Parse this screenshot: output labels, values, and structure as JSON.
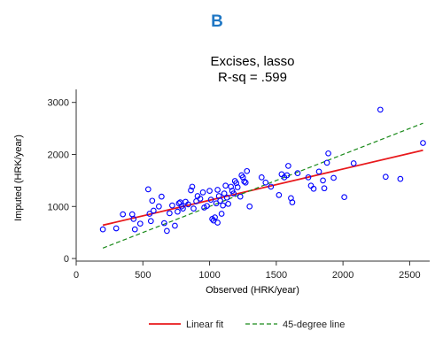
{
  "panel_label": "B",
  "colors": {
    "panel_label": "#1f77c4",
    "points": "#0000ff",
    "fit": "#e8191c",
    "reference": "#1a8a1a",
    "axis": "#333333"
  },
  "chart_data": {
    "type": "scatter",
    "title": "Excises, lasso",
    "subtitle": "R-sq = .599",
    "xlabel": "Observed (HRK/year)",
    "ylabel": "Imputed (HRK/year)",
    "xlim": [
      0,
      2650
    ],
    "ylim": [
      -50,
      3250
    ],
    "xticks": [
      0,
      500,
      1000,
      1500,
      2000,
      2500
    ],
    "yticks": [
      0,
      1000,
      2000,
      3000
    ],
    "grid": false,
    "legend_position": "bottom",
    "legend": [
      "Linear fit",
      "45-degree line"
    ],
    "points": [
      [
        200,
        560
      ],
      [
        300,
        580
      ],
      [
        350,
        850
      ],
      [
        420,
        850
      ],
      [
        430,
        760
      ],
      [
        440,
        560
      ],
      [
        480,
        670
      ],
      [
        540,
        1330
      ],
      [
        550,
        860
      ],
      [
        560,
        720
      ],
      [
        570,
        1110
      ],
      [
        580,
        920
      ],
      [
        620,
        1000
      ],
      [
        640,
        1190
      ],
      [
        660,
        680
      ],
      [
        680,
        530
      ],
      [
        700,
        870
      ],
      [
        720,
        1020
      ],
      [
        740,
        630
      ],
      [
        760,
        900
      ],
      [
        770,
        1060
      ],
      [
        780,
        1080
      ],
      [
        790,
        1000
      ],
      [
        800,
        960
      ],
      [
        820,
        1090
      ],
      [
        840,
        1040
      ],
      [
        860,
        1310
      ],
      [
        870,
        1380
      ],
      [
        880,
        960
      ],
      [
        900,
        1100
      ],
      [
        910,
        1200
      ],
      [
        930,
        1150
      ],
      [
        950,
        1270
      ],
      [
        960,
        980
      ],
      [
        980,
        1010
      ],
      [
        1000,
        1300
      ],
      [
        1010,
        1130
      ],
      [
        1020,
        760
      ],
      [
        1030,
        730
      ],
      [
        1040,
        790
      ],
      [
        1050,
        1060
      ],
      [
        1060,
        1320
      ],
      [
        1060,
        690
      ],
      [
        1070,
        1200
      ],
      [
        1080,
        1110
      ],
      [
        1090,
        860
      ],
      [
        1100,
        1020
      ],
      [
        1110,
        1250
      ],
      [
        1120,
        1400
      ],
      [
        1130,
        1170
      ],
      [
        1140,
        1050
      ],
      [
        1160,
        1380
      ],
      [
        1170,
        1300
      ],
      [
        1180,
        1250
      ],
      [
        1190,
        1490
      ],
      [
        1200,
        1450
      ],
      [
        1210,
        1370
      ],
      [
        1230,
        1190
      ],
      [
        1240,
        1600
      ],
      [
        1250,
        1560
      ],
      [
        1260,
        1480
      ],
      [
        1270,
        1460
      ],
      [
        1280,
        1680
      ],
      [
        1300,
        1000
      ],
      [
        1390,
        1560
      ],
      [
        1420,
        1460
      ],
      [
        1460,
        1380
      ],
      [
        1520,
        1220
      ],
      [
        1540,
        1620
      ],
      [
        1560,
        1560
      ],
      [
        1580,
        1600
      ],
      [
        1590,
        1780
      ],
      [
        1610,
        1160
      ],
      [
        1620,
        1080
      ],
      [
        1660,
        1640
      ],
      [
        1740,
        1560
      ],
      [
        1760,
        1400
      ],
      [
        1780,
        1340
      ],
      [
        1820,
        1670
      ],
      [
        1850,
        1500
      ],
      [
        1860,
        1350
      ],
      [
        1880,
        1840
      ],
      [
        1890,
        2020
      ],
      [
        1930,
        1550
      ],
      [
        2010,
        1180
      ],
      [
        2080,
        1830
      ],
      [
        2280,
        2860
      ],
      [
        2320,
        1570
      ],
      [
        2430,
        1530
      ],
      [
        2600,
        2220
      ]
    ],
    "series": [
      {
        "name": "Linear fit",
        "kind": "line",
        "style": "solid",
        "x": [
          200,
          2600
        ],
        "y": [
          640,
          2080
        ]
      },
      {
        "name": "45-degree line",
        "kind": "line",
        "style": "dashed",
        "x": [
          200,
          2600
        ],
        "y": [
          200,
          2600
        ]
      }
    ]
  }
}
